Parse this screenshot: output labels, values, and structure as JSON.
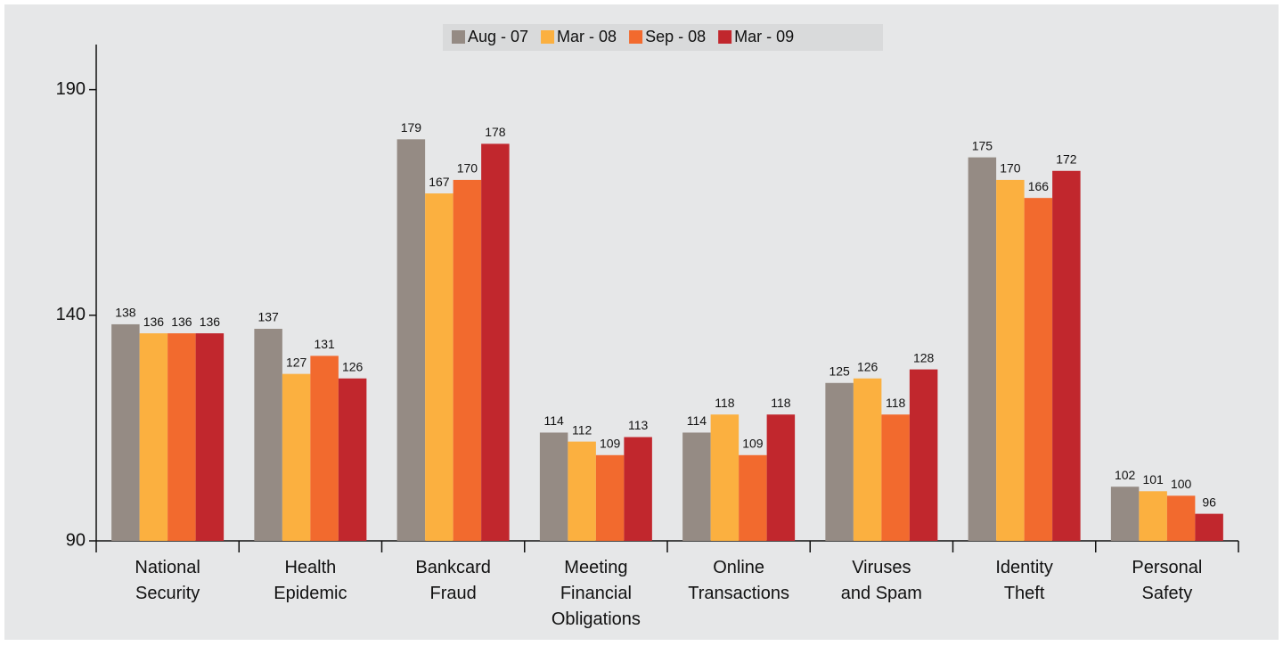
{
  "chart_data": {
    "type": "bar",
    "categories": [
      "National\nSecurity",
      "Health\nEpidemic",
      "Bankcard\nFraud",
      "Meeting\nFinancial\nObligations",
      "Online\nTransactions",
      "Viruses\nand Spam",
      "Identity\nTheft",
      "Personal\nSafety"
    ],
    "series": [
      {
        "name": "Aug - 07",
        "color": "#958b84",
        "values": [
          138,
          137,
          179,
          114,
          114,
          125,
          175,
          102
        ]
      },
      {
        "name": "Mar - 08",
        "color": "#fbb040",
        "values": [
          136,
          127,
          167,
          112,
          118,
          126,
          170,
          101
        ]
      },
      {
        "name": "Sep - 08",
        "color": "#f26a2e",
        "values": [
          136,
          131,
          170,
          109,
          109,
          118,
          166,
          100
        ]
      },
      {
        "name": "Mar - 09",
        "color": "#c1272d",
        "values": [
          136,
          126,
          178,
          113,
          118,
          128,
          172,
          96
        ]
      }
    ],
    "ylim": [
      90,
      200
    ],
    "yticks": [
      90,
      140,
      190
    ],
    "grid": false,
    "legend": "top"
  }
}
